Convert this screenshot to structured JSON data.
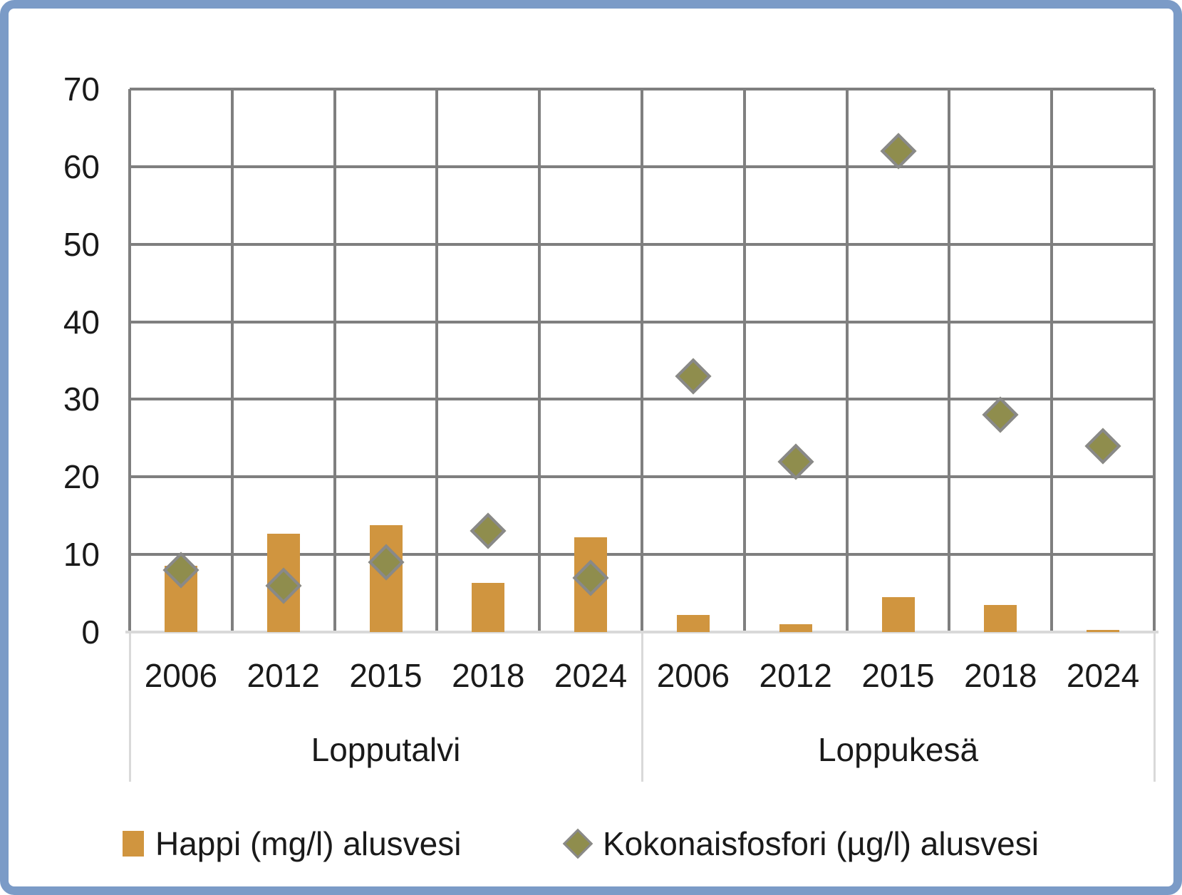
{
  "chart_data": {
    "type": "bar",
    "title": "",
    "categories": [
      "2006",
      "2012",
      "2015",
      "2018",
      "2024",
      "2006",
      "2012",
      "2015",
      "2018",
      "2024"
    ],
    "groups": [
      {
        "label": "Lopputalvi",
        "span": 5
      },
      {
        "label": "Loppukesä",
        "span": 5
      }
    ],
    "series": [
      {
        "name": "Happi (mg/l) alusvesi",
        "type": "bar",
        "values": [
          8.5,
          12.7,
          13.8,
          6.3,
          12.2,
          2.2,
          1,
          4.5,
          3.5,
          0.3
        ]
      },
      {
        "name": "Kokonaisfosfori (µg/l) alusvesi",
        "type": "scatter",
        "marker": "diamond-icon",
        "values": [
          8,
          6,
          9,
          13,
          7,
          33,
          22,
          62,
          28,
          24
        ]
      }
    ],
    "ylim": [
      0,
      70
    ],
    "y_ticks": [
      "0",
      "10",
      "20",
      "30",
      "40",
      "50",
      "60",
      "70"
    ],
    "xlabel": "",
    "ylabel": "",
    "grid": "on",
    "legend_position": "bottom"
  },
  "colors": {
    "bar": "#d0953f",
    "diamond_fill": "#8f8d4d",
    "diamond_border": "#898989",
    "gridline": "#7f7f7f",
    "axis_line": "#d9d9d9",
    "text": "#1a1a1a",
    "frame_border": "#7b9bc7",
    "background": "#ffffff"
  }
}
